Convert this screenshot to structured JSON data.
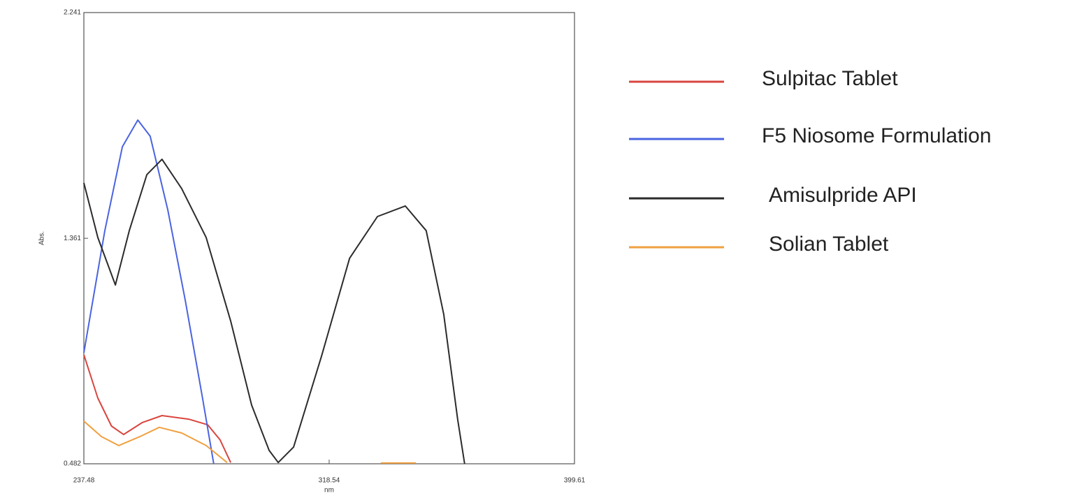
{
  "chart_data": {
    "type": "line",
    "xlabel": "nm",
    "ylabel": "Abs.",
    "xlim": [
      237.48,
      399.61
    ],
    "xticks": [
      237.48,
      318.54,
      399.61
    ],
    "ylim": [
      0.482,
      2.241
    ],
    "yticks": [
      0.482,
      1.361,
      2.241
    ],
    "grid": false,
    "legend": "right",
    "series": [
      {
        "name": "Sulpitac Tablet",
        "color": "#d9453f",
        "x": [
          237.48,
          242.1,
          246.6,
          250.6,
          256.8,
          263.3,
          272.1,
          278.4,
          282.5,
          286.0
        ],
        "values": [
          0.907,
          0.738,
          0.629,
          0.596,
          0.643,
          0.67,
          0.656,
          0.634,
          0.575,
          0.487
        ]
      },
      {
        "name": "F5 Niosome Formulation",
        "color": "#4a63e0",
        "x": [
          237.48,
          244.4,
          250.2,
          255.3,
          259.4,
          265.2,
          271.0,
          276.7,
          280.4
        ],
        "values": [
          0.915,
          1.391,
          1.718,
          1.822,
          1.759,
          1.473,
          1.119,
          0.738,
          0.482
        ]
      },
      {
        "name": "Amisulpride API",
        "color": "#2b2b2b",
        "x": [
          237.48,
          242.1,
          247.9,
          252.5,
          258.3,
          263.3,
          269.8,
          277.9,
          286.0,
          292.9,
          298.7,
          301.7,
          306.8,
          316.0,
          325.3,
          334.5,
          343.7,
          350.6,
          356.4,
          361.0,
          363.3
        ],
        "values": [
          1.577,
          1.364,
          1.179,
          1.391,
          1.609,
          1.669,
          1.555,
          1.364,
          1.038,
          0.711,
          0.534,
          0.487,
          0.547,
          0.901,
          1.283,
          1.446,
          1.487,
          1.391,
          1.065,
          0.656,
          0.482
        ]
      },
      {
        "name": "Solian Tablet",
        "color": "#f0a040",
        "x": [
          237.48,
          243.3,
          249.0,
          256.0,
          262.4,
          269.8,
          277.9,
          284.8,
          310.0,
          335.6,
          347.2
        ],
        "values": [
          0.648,
          0.588,
          0.553,
          0.588,
          0.624,
          0.602,
          0.553,
          0.487,
          null,
          0.485,
          0.485
        ]
      }
    ]
  }
}
